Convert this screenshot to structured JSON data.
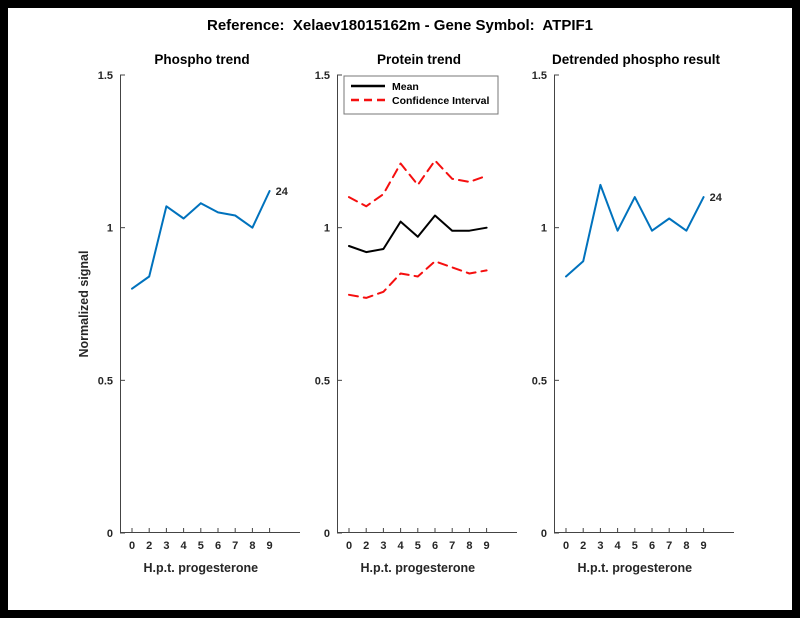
{
  "figure": {
    "title": "Reference:  Xelaev18015162m - Gene Symbol:  ATPIF1",
    "frame_color": "#000000",
    "background_color": "#ffffff"
  },
  "colors": {
    "axis": "#444444",
    "tick_text": "#262626",
    "blue": "#0072BD",
    "black": "#000000",
    "red": "#F50F0F"
  },
  "chart_data": [
    {
      "type": "line",
      "id": "phospho-trend",
      "title": "Phospho trend",
      "xlabel": "H.p.t. progesterone",
      "ylabel": "Normalized signal",
      "ylim": [
        0,
        1.5
      ],
      "grid": false,
      "x_ticks": [
        "0",
        "2",
        "3",
        "4",
        "5",
        "6",
        "7",
        "8",
        "9"
      ],
      "y_ticks": [
        {
          "v": 0,
          "label": "0"
        },
        {
          "v": 0.5,
          "label": "0.5"
        },
        {
          "v": 1,
          "label": "1"
        },
        {
          "v": 1.5,
          "label": "1.5"
        }
      ],
      "series": [
        {
          "name": "phospho",
          "color": "#0072BD",
          "dash": false,
          "values": [
            0.8,
            0.84,
            1.07,
            1.03,
            1.08,
            1.05,
            1.04,
            1.0,
            1.12
          ]
        }
      ],
      "end_label": "24"
    },
    {
      "type": "line",
      "id": "protein-trend",
      "title": "Protein trend",
      "xlabel": "H.p.t. progesterone",
      "ylabel": "",
      "ylim": [
        0,
        1.5
      ],
      "grid": false,
      "x_ticks": [
        "0",
        "2",
        "3",
        "4",
        "5",
        "6",
        "7",
        "8",
        "9"
      ],
      "y_ticks": [
        {
          "v": 0,
          "label": "0"
        },
        {
          "v": 0.5,
          "label": "0.5"
        },
        {
          "v": 1,
          "label": "1"
        },
        {
          "v": 1.5,
          "label": "1.5"
        }
      ],
      "legend": [
        {
          "label": "Mean",
          "color": "#000000",
          "dash": false
        },
        {
          "label": "Confidence Interval",
          "color": "#F50F0F",
          "dash": true
        }
      ],
      "legend_position": "top-left",
      "series": [
        {
          "name": "mean",
          "color": "#000000",
          "dash": false,
          "values": [
            0.94,
            0.92,
            0.93,
            1.02,
            0.97,
            1.04,
            0.99,
            0.99,
            1.0
          ]
        },
        {
          "name": "ci-upper",
          "color": "#F50F0F",
          "dash": true,
          "values": [
            1.1,
            1.07,
            1.11,
            1.21,
            1.14,
            1.22,
            1.16,
            1.15,
            1.17
          ]
        },
        {
          "name": "ci-lower",
          "color": "#F50F0F",
          "dash": true,
          "values": [
            0.78,
            0.77,
            0.79,
            0.85,
            0.84,
            0.89,
            0.87,
            0.85,
            0.86
          ]
        }
      ]
    },
    {
      "type": "line",
      "id": "detrended-phospho-result",
      "title": "Detrended phospho result",
      "xlabel": "H.p.t. progesterone",
      "ylabel": "",
      "ylim": [
        0,
        1.5
      ],
      "grid": false,
      "x_ticks": [
        "0",
        "2",
        "3",
        "4",
        "5",
        "6",
        "7",
        "8",
        "9"
      ],
      "y_ticks": [
        {
          "v": 0,
          "label": "0"
        },
        {
          "v": 0.5,
          "label": "0.5"
        },
        {
          "v": 1,
          "label": "1"
        },
        {
          "v": 1.5,
          "label": "1.5"
        }
      ],
      "series": [
        {
          "name": "detrended-phospho",
          "color": "#0072BD",
          "dash": false,
          "values": [
            0.84,
            0.89,
            1.14,
            0.99,
            1.1,
            0.99,
            1.03,
            0.99,
            1.1
          ]
        }
      ],
      "end_label": "24"
    }
  ]
}
